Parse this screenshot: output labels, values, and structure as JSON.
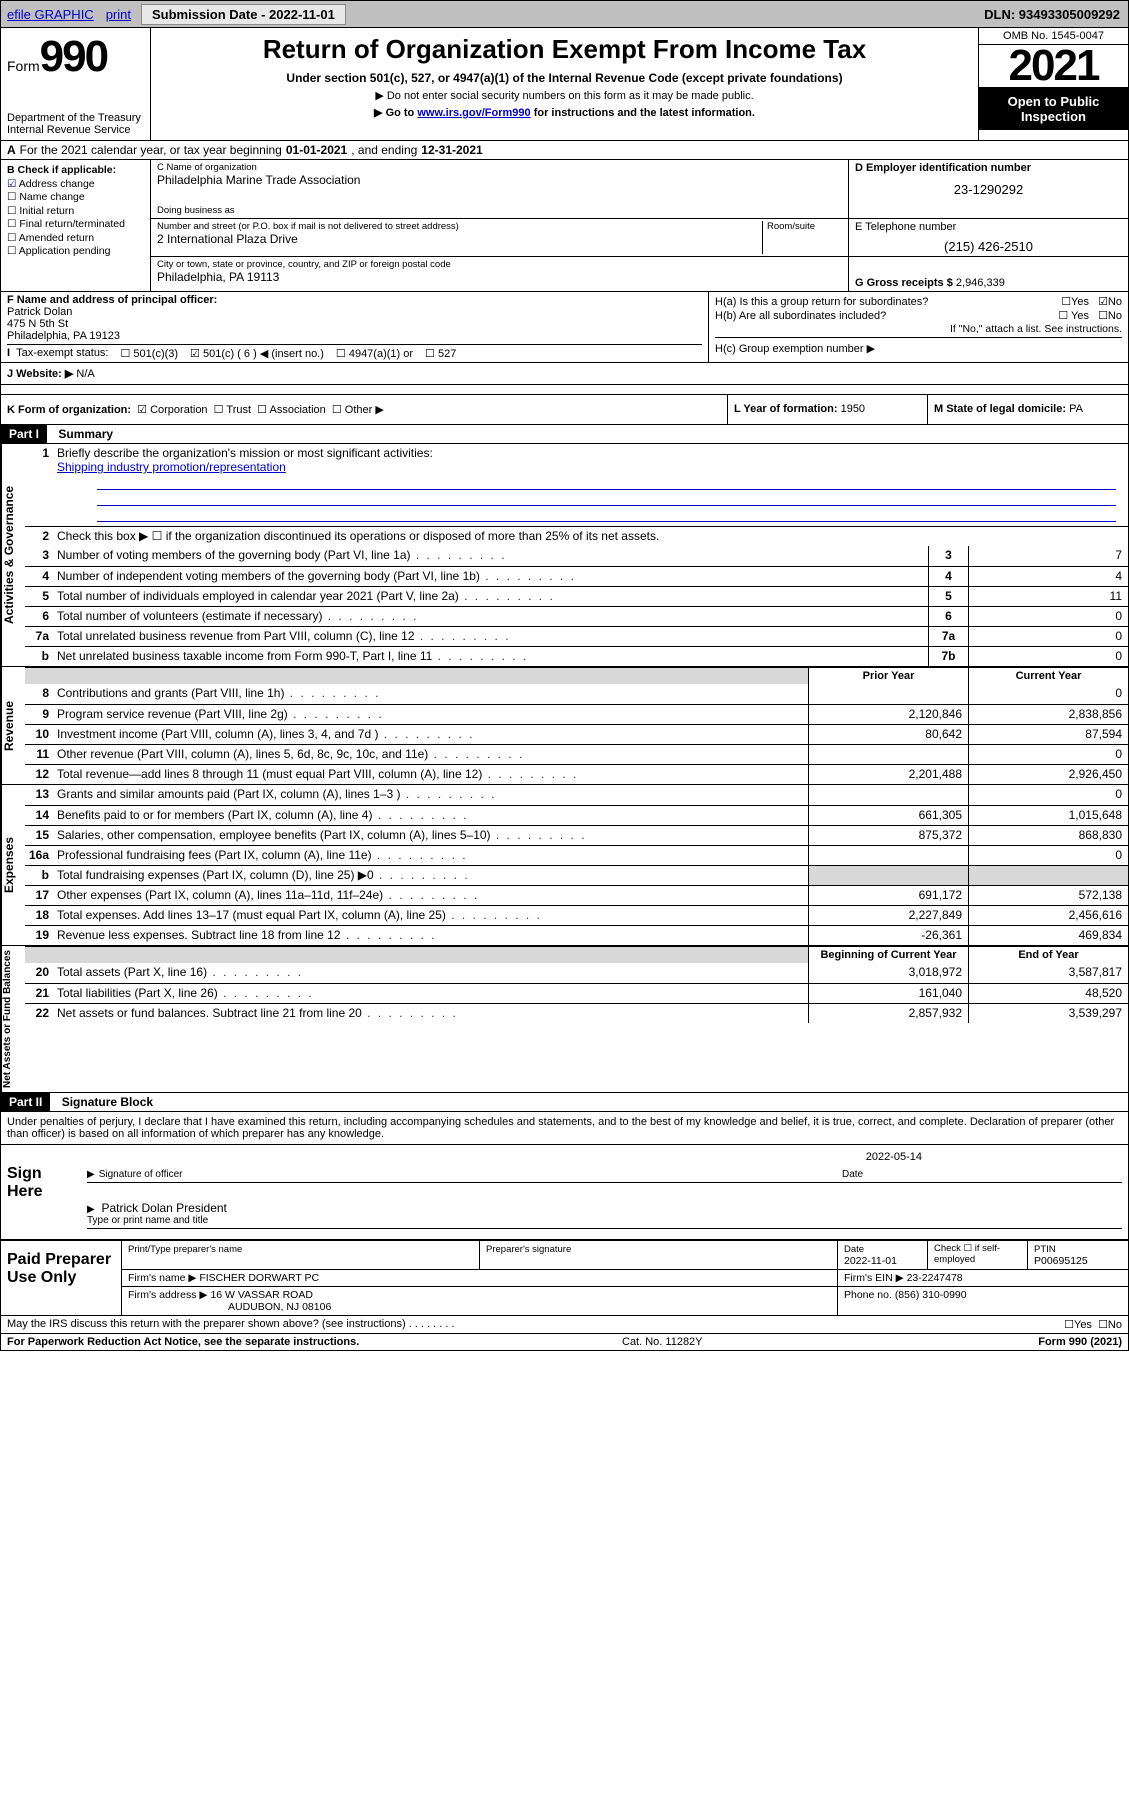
{
  "topbar": {
    "efile": "efile GRAPHIC",
    "print": "print",
    "subdate_label": "Submission Date - 2022-11-01",
    "dln": "DLN: 93493305009292"
  },
  "header": {
    "form_word": "Form",
    "form_num": "990",
    "dept": "Department of the Treasury Internal Revenue Service",
    "title": "Return of Organization Exempt From Income Tax",
    "subtitle": "Under section 501(c), 527, or 4947(a)(1) of the Internal Revenue Code (except private foundations)",
    "note1": "▶ Do not enter social security numbers on this form as it may be made public.",
    "note2_pre": "▶ Go to ",
    "note2_link": "www.irs.gov/Form990",
    "note2_post": " for instructions and the latest information.",
    "omb": "OMB No. 1545-0047",
    "year": "2021",
    "open": "Open to Public Inspection"
  },
  "row_a": {
    "label_a": "A",
    "text": "For the 2021 calendar year, or tax year beginning ",
    "begin": "01-01-2021",
    "mid": " , and ending ",
    "end": "12-31-2021"
  },
  "col_b": {
    "label": "B Check if applicable:",
    "items": [
      "Address change",
      "Name change",
      "Initial return",
      "Final return/terminated",
      "Amended return",
      "Application pending"
    ],
    "checked_idx": 0
  },
  "box_c": {
    "name_lbl": "C Name of organization",
    "name": "Philadelphia Marine Trade Association",
    "dba_lbl": "Doing business as",
    "dba": "",
    "addr_lbl": "Number and street (or P.O. box if mail is not delivered to street address)",
    "room_lbl": "Room/suite",
    "addr": "2 International Plaza Drive",
    "city_lbl": "City or town, state or province, country, and ZIP or foreign postal code",
    "city": "Philadelphia, PA  19113"
  },
  "box_d": {
    "lbl": "D Employer identification number",
    "val": "23-1290292"
  },
  "box_e": {
    "lbl": "E Telephone number",
    "val": "(215) 426-2510"
  },
  "box_g": {
    "lbl": "G Gross receipts $",
    "val": "2,946,339"
  },
  "box_f": {
    "lbl": "F Name and address of principal officer:",
    "name": "Patrick Dolan",
    "addr1": "475 N 5th St",
    "addr2": "Philadelphia, PA  19123"
  },
  "box_h": {
    "a_lbl": "H(a)  Is this a group return for subordinates?",
    "a_yes": "☐Yes",
    "a_no": "☑No",
    "b_lbl": "H(b)  Are all subordinates included?",
    "b_yes": "☐ Yes",
    "b_no": "☐No",
    "b_note": "If \"No,\" attach a list. See instructions.",
    "c_lbl": "H(c)  Group exemption number ▶"
  },
  "row_i": {
    "lbl": "I   Tax-exempt status:",
    "o1": "501(c)(3)",
    "o2": "501(c) ( 6 ) ◀ (insert no.)",
    "o3": "4947(a)(1) or",
    "o4": "527"
  },
  "row_j": {
    "lbl": "J   Website: ▶",
    "val": "N/A"
  },
  "row_k": {
    "lbl": "K Form of organization:",
    "o1": "Corporation",
    "o2": "Trust",
    "o3": "Association",
    "o4": "Other ▶"
  },
  "row_l": {
    "lbl": "L Year of formation:",
    "val": "1950"
  },
  "row_m": {
    "lbl": "M State of legal domicile:",
    "val": "PA"
  },
  "part1": {
    "hdr": "Part I",
    "title": "Summary"
  },
  "summary": {
    "line1_lbl": "Briefly describe the organization's mission or most significant activities:",
    "line1_val": "Shipping industry promotion/representation",
    "line2": "Check this box ▶ ☐  if the organization discontinued its operations or disposed of more than 25% of its net assets.",
    "govlines": [
      {
        "n": "3",
        "d": "Number of voting members of the governing body (Part VI, line 1a)",
        "b": "3",
        "v": "7"
      },
      {
        "n": "4",
        "d": "Number of independent voting members of the governing body (Part VI, line 1b)",
        "b": "4",
        "v": "4"
      },
      {
        "n": "5",
        "d": "Total number of individuals employed in calendar year 2021 (Part V, line 2a)",
        "b": "5",
        "v": "11"
      },
      {
        "n": "6",
        "d": "Total number of volunteers (estimate if necessary)",
        "b": "6",
        "v": "0"
      },
      {
        "n": "7a",
        "d": "Total unrelated business revenue from Part VIII, column (C), line 12",
        "b": "7a",
        "v": "0"
      },
      {
        "n": "b",
        "d": "Net unrelated business taxable income from Form 990-T, Part I, line 11",
        "b": "7b",
        "v": "0"
      }
    ],
    "colhdr_prior": "Prior Year",
    "colhdr_curr": "Current Year",
    "revlines": [
      {
        "n": "8",
        "d": "Contributions and grants (Part VIII, line 1h)",
        "p": "",
        "c": "0"
      },
      {
        "n": "9",
        "d": "Program service revenue (Part VIII, line 2g)",
        "p": "2,120,846",
        "c": "2,838,856"
      },
      {
        "n": "10",
        "d": "Investment income (Part VIII, column (A), lines 3, 4, and 7d )",
        "p": "80,642",
        "c": "87,594"
      },
      {
        "n": "11",
        "d": "Other revenue (Part VIII, column (A), lines 5, 6d, 8c, 9c, 10c, and 11e)",
        "p": "",
        "c": "0"
      },
      {
        "n": "12",
        "d": "Total revenue—add lines 8 through 11 (must equal Part VIII, column (A), line 12)",
        "p": "2,201,488",
        "c": "2,926,450"
      }
    ],
    "explines": [
      {
        "n": "13",
        "d": "Grants and similar amounts paid (Part IX, column (A), lines 1–3 )",
        "p": "",
        "c": "0"
      },
      {
        "n": "14",
        "d": "Benefits paid to or for members (Part IX, column (A), line 4)",
        "p": "661,305",
        "c": "1,015,648"
      },
      {
        "n": "15",
        "d": "Salaries, other compensation, employee benefits (Part IX, column (A), lines 5–10)",
        "p": "875,372",
        "c": "868,830"
      },
      {
        "n": "16a",
        "d": "Professional fundraising fees (Part IX, column (A), line 11e)",
        "p": "",
        "c": "0"
      },
      {
        "n": "b",
        "d": "Total fundraising expenses (Part IX, column (D), line 25) ▶0",
        "p": "shade",
        "c": "shade"
      },
      {
        "n": "17",
        "d": "Other expenses (Part IX, column (A), lines 11a–11d, 11f–24e)",
        "p": "691,172",
        "c": "572,138"
      },
      {
        "n": "18",
        "d": "Total expenses. Add lines 13–17 (must equal Part IX, column (A), line 25)",
        "p": "2,227,849",
        "c": "2,456,616"
      },
      {
        "n": "19",
        "d": "Revenue less expenses. Subtract line 18 from line 12",
        "p": "-26,361",
        "c": "469,834"
      }
    ],
    "colhdr_begin": "Beginning of Current Year",
    "colhdr_end": "End of Year",
    "netlines": [
      {
        "n": "20",
        "d": "Total assets (Part X, line 16)",
        "p": "3,018,972",
        "c": "3,587,817"
      },
      {
        "n": "21",
        "d": "Total liabilities (Part X, line 26)",
        "p": "161,040",
        "c": "48,520"
      },
      {
        "n": "22",
        "d": "Net assets or fund balances. Subtract line 21 from line 20",
        "p": "2,857,932",
        "c": "3,539,297"
      }
    ],
    "vtab_gov": "Activities & Governance",
    "vtab_rev": "Revenue",
    "vtab_exp": "Expenses",
    "vtab_net": "Net Assets or Fund Balances"
  },
  "part2": {
    "hdr": "Part II",
    "title": "Signature Block",
    "penalty": "Under penalties of perjury, I declare that I have examined this return, including accompanying schedules and statements, and to the best of my knowledge and belief, it is true, correct, and complete. Declaration of preparer (other than officer) is based on all information of which preparer has any knowledge."
  },
  "sign": {
    "here": "Sign Here",
    "sig_lbl": "Signature of officer",
    "date_lbl": "Date",
    "date_val": "2022-05-14",
    "name": "Patrick Dolan President",
    "name_lbl": "Type or print name and title"
  },
  "paid": {
    "title": "Paid Preparer Use Only",
    "h1": "Print/Type preparer's name",
    "h2": "Preparer's signature",
    "h3": "Date",
    "h3v": "2022-11-01",
    "h4": "Check ☐ if self-employed",
    "h5": "PTIN",
    "h5v": "P00695125",
    "firm_lbl": "Firm's name    ▶",
    "firm": "FISCHER DORWART PC",
    "ein_lbl": "Firm's EIN ▶",
    "ein": "23-2247478",
    "addr_lbl": "Firm's address ▶",
    "addr1": "16 W VASSAR ROAD",
    "addr2": "AUDUBON, NJ  08106",
    "phone_lbl": "Phone no.",
    "phone": "(856) 310-0990"
  },
  "footer": {
    "discuss": "May the IRS discuss this return with the preparer shown above? (see instructions)",
    "yes": "☐Yes",
    "no": "☐No",
    "pra": "For Paperwork Reduction Act Notice, see the separate instructions.",
    "cat": "Cat. No. 11282Y",
    "form": "Form 990 (2021)"
  }
}
